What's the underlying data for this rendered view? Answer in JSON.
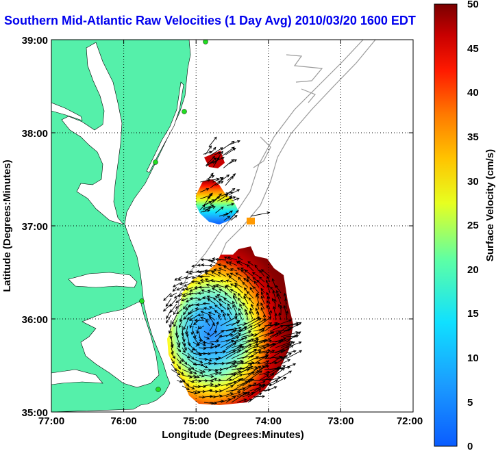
{
  "title": "Southern Mid-Atlantic Raw Velocities (1 Day Avg) 2010/03/20 1600 EDT",
  "x_axis": {
    "label": "Longitude (Degrees:Minutes)",
    "ticks": [
      "77:00",
      "76:00",
      "75:00",
      "74:00",
      "73:00",
      "72:00"
    ]
  },
  "y_axis": {
    "label": "Latitude (Degrees:Minutes)",
    "ticks": [
      "39:00",
      "38:00",
      "37:00",
      "36:00",
      "35:00"
    ]
  },
  "colorbar": {
    "label": "Surface Velocity (cm/s)",
    "ticks": [
      "50",
      "45",
      "40",
      "35",
      "30",
      "25",
      "20",
      "15",
      "10",
      "5",
      "0"
    ],
    "min": 0,
    "max": 50
  },
  "colors": {
    "land": "#55f0aa",
    "title": "#0000ee",
    "contour": "#999999",
    "station": "#22dd22"
  }
}
